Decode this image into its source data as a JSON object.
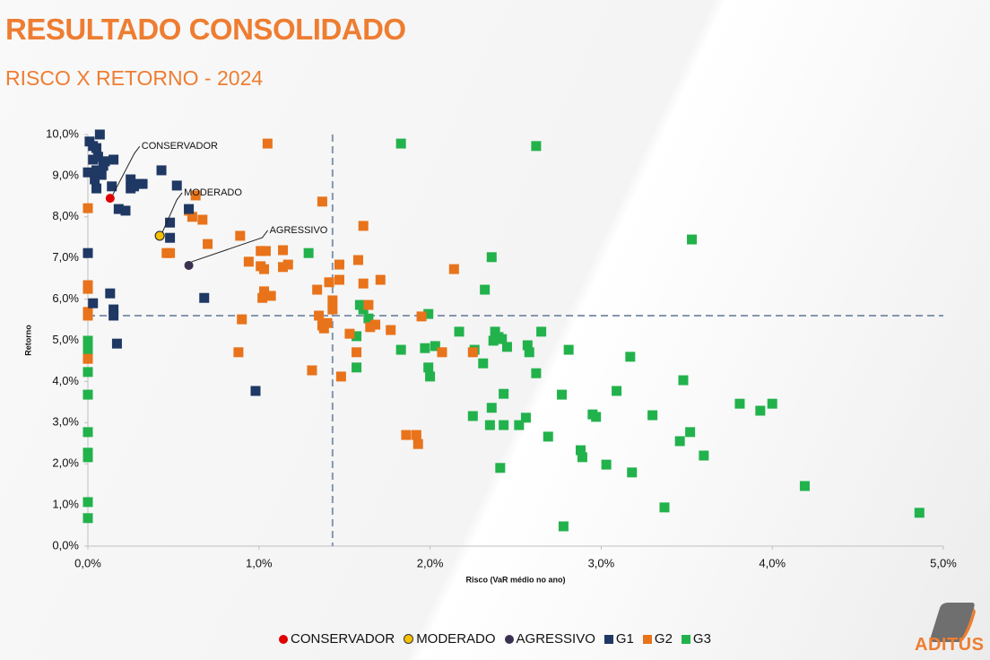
{
  "title": "RESULTADO CONSOLIDADO",
  "subtitle": "RISCO X RETORNO - 2024",
  "logo": "ADITUS",
  "chart_data": {
    "type": "scatter",
    "x_label": "Risco (VaR médio no ano)",
    "y_label": "Retorno",
    "xlim": [
      0,
      5
    ],
    "ylim": [
      0,
      10
    ],
    "xticks": [
      {
        "value": 0,
        "label": "0,0%"
      },
      {
        "value": 1,
        "label": "1,0%"
      },
      {
        "value": 2,
        "label": "2,0%"
      },
      {
        "value": 3,
        "label": "3,0%"
      },
      {
        "value": 4,
        "label": "4,0%"
      },
      {
        "value": 5,
        "label": "5,0%"
      }
    ],
    "yticks": [
      {
        "value": 0,
        "label": "0,0%"
      },
      {
        "value": 1,
        "label": "1,0%"
      },
      {
        "value": 2,
        "label": "2,0%"
      },
      {
        "value": 3,
        "label": "3,0%"
      },
      {
        "value": 4,
        "label": "4,0%"
      },
      {
        "value": 5,
        "label": "5,0%"
      },
      {
        "value": 6,
        "label": "6,0%"
      },
      {
        "value": 7,
        "label": "7,0%"
      },
      {
        "value": 8,
        "label": "8,0%"
      },
      {
        "value": 9,
        "label": "9,0%"
      },
      {
        "value": 10,
        "label": "10,0%"
      }
    ],
    "reference_lines": {
      "x": 1.43,
      "y": 5.6
    },
    "series": [
      {
        "name": "CONSERVADOR",
        "color": "#e00000",
        "marker": "circle",
        "x": [
          0.13
        ],
        "y": [
          8.45
        ]
      },
      {
        "name": "MODERADO",
        "color": "#f5c000",
        "marker": "circle",
        "x": [
          0.42
        ],
        "y": [
          7.54
        ]
      },
      {
        "name": "AGRESSIVO",
        "color": "#3a3050",
        "marker": "circle",
        "x": [
          0.59
        ],
        "y": [
          6.82
        ]
      },
      {
        "name": "G1",
        "color": "#1f3864",
        "marker": "square",
        "x": [
          0.01,
          0.07,
          0.03,
          0.05,
          0.0,
          0.03,
          0.06,
          0.1,
          0.05,
          0.08,
          0.04,
          0.09,
          0.15,
          0.14,
          0.05,
          0.18,
          0.22,
          0.25,
          0.27,
          0.3,
          0.32,
          0.25,
          0.43,
          0.52,
          0.59,
          0.48,
          0.48,
          0.0,
          0.03,
          0.13,
          0.15,
          0.15,
          0.17,
          0.68,
          0.98
        ],
        "y": [
          9.83,
          10.0,
          9.72,
          9.67,
          9.08,
          9.39,
          9.46,
          9.35,
          9.13,
          9.02,
          8.91,
          9.24,
          9.39,
          8.74,
          8.69,
          8.19,
          8.15,
          8.91,
          8.74,
          8.8,
          8.8,
          8.69,
          9.13,
          8.76,
          8.19,
          7.86,
          7.49,
          7.12,
          5.9,
          6.14,
          5.75,
          5.6,
          4.92,
          6.03,
          3.77
        ]
      },
      {
        "name": "G2",
        "color": "#e8731a",
        "marker": "square",
        "x": [
          0,
          0,
          0,
          0,
          0,
          0,
          1.05,
          1.37,
          0.63,
          0.59,
          0.61,
          0.67,
          0.7,
          0.46,
          0.48,
          0.89,
          0.94,
          1.01,
          1.04,
          1.01,
          1.03,
          1.03,
          1.02,
          1.07,
          1.14,
          1.17,
          1.14,
          0.9,
          0.88,
          1.31,
          1.34,
          1.35,
          1.37,
          1.38,
          1.4,
          1.43,
          1.43,
          1.41,
          1.47,
          1.47,
          1.48,
          1.53,
          1.57,
          1.58,
          1.61,
          1.61,
          1.64,
          1.65,
          1.68,
          1.71,
          1.77,
          1.86,
          1.92,
          1.93,
          1.95,
          2.07,
          2.14,
          2.25
        ],
        "y": [
          8.21,
          6.34,
          6.25,
          5.69,
          5.6,
          4.55,
          9.78,
          8.37,
          8.52,
          8.15,
          8.0,
          7.93,
          7.34,
          7.12,
          7.12,
          7.54,
          6.91,
          7.17,
          7.17,
          6.8,
          6.73,
          6.19,
          6.03,
          6.08,
          7.19,
          6.84,
          6.78,
          5.51,
          4.71,
          4.27,
          6.23,
          5.6,
          5.36,
          5.29,
          5.42,
          5.75,
          5.97,
          6.41,
          6.84,
          6.47,
          4.12,
          5.16,
          4.71,
          6.95,
          7.78,
          6.38,
          5.86,
          5.32,
          5.38,
          6.47,
          5.25,
          2.7,
          2.7,
          2.48,
          5.58,
          4.71,
          6.73,
          4.71
        ]
      },
      {
        "name": "G3",
        "color": "#22b24c",
        "marker": "square",
        "x": [
          0,
          0,
          0,
          0,
          0,
          0,
          0,
          0,
          0,
          0,
          1.83,
          2.62,
          3.53,
          2.36,
          1.29,
          2.32,
          1.59,
          1.61,
          1.99,
          1.57,
          1.64,
          1.57,
          1.83,
          1.97,
          2.03,
          2.17,
          2.26,
          1.99,
          2.0,
          2.31,
          2.38,
          2.4,
          2.37,
          2.42,
          2.45,
          2.57,
          2.58,
          2.65,
          2.81,
          2.62,
          3.17,
          2.77,
          3.09,
          3.48,
          2.43,
          2.36,
          2.25,
          2.35,
          2.43,
          2.52,
          2.56,
          2.69,
          2.95,
          2.97,
          3.3,
          2.88,
          2.89,
          2.41,
          3.03,
          3.18,
          3.46,
          3.52,
          3.6,
          3.37,
          2.78,
          3.81,
          3.93,
          4.0,
          4.19,
          4.86
        ],
        "y": [
          4.99,
          4.88,
          4.73,
          4.23,
          3.68,
          2.77,
          2.27,
          2.16,
          1.07,
          0.68,
          9.78,
          9.72,
          7.45,
          7.02,
          7.12,
          6.23,
          5.86,
          5.75,
          5.64,
          5.1,
          5.53,
          4.34,
          4.77,
          4.81,
          4.86,
          5.21,
          4.77,
          4.34,
          4.12,
          4.44,
          5.21,
          5.08,
          4.99,
          5.03,
          4.84,
          4.88,
          4.71,
          5.21,
          4.77,
          4.2,
          4.6,
          3.68,
          3.77,
          4.03,
          3.7,
          3.36,
          3.16,
          2.94,
          2.94,
          2.94,
          3.12,
          2.66,
          3.2,
          3.14,
          3.18,
          2.33,
          2.16,
          1.9,
          1.98,
          1.79,
          2.55,
          2.77,
          2.2,
          0.94,
          0.48,
          3.46,
          3.29,
          3.46,
          1.46,
          0.81
        ]
      }
    ]
  }
}
